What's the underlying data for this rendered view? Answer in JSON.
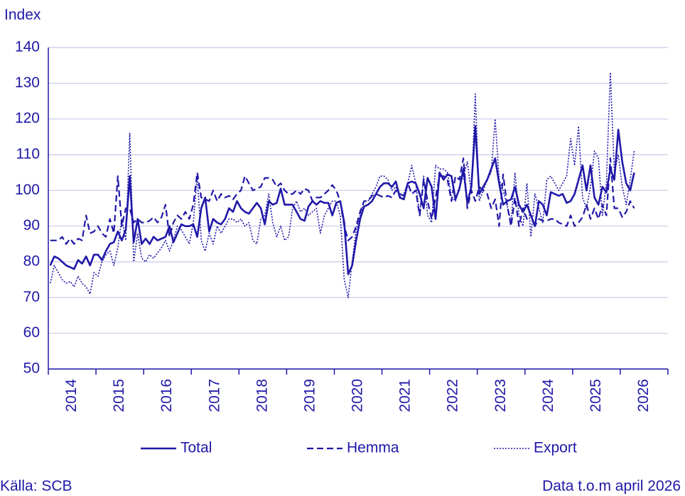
{
  "chart_data": {
    "type": "line",
    "y_label": "Index",
    "source": "Källa: SCB",
    "note": "Data t.o.m april 2026",
    "categories": [
      "2014",
      null,
      null,
      null,
      null,
      null,
      null,
      null,
      null,
      null,
      null,
      null,
      "2015",
      null,
      null,
      null,
      null,
      null,
      null,
      null,
      null,
      null,
      null,
      null,
      "2016",
      null,
      null,
      null,
      null,
      null,
      null,
      null,
      null,
      null,
      null,
      null,
      "2017",
      null,
      null,
      null,
      null,
      null,
      null,
      null,
      null,
      null,
      null,
      null,
      "2018",
      null,
      null,
      null,
      null,
      null,
      null,
      null,
      null,
      null,
      null,
      null,
      "2019",
      null,
      null,
      null,
      null,
      null,
      null,
      null,
      null,
      null,
      null,
      null,
      "2020",
      null,
      null,
      null,
      null,
      null,
      null,
      null,
      null,
      null,
      null,
      null,
      "2021",
      null,
      null,
      null,
      null,
      null,
      null,
      null,
      null,
      null,
      null,
      null,
      "2022",
      null,
      null,
      null,
      null,
      null,
      null,
      null,
      null,
      null,
      null,
      null,
      "2023",
      null,
      null,
      null,
      null,
      null,
      null,
      null,
      null,
      null,
      null,
      null,
      "2024",
      null,
      null,
      null,
      null,
      null,
      null,
      null,
      null,
      null,
      null,
      null,
      "2025",
      null,
      null,
      null,
      null,
      null,
      null,
      null,
      null,
      null,
      null,
      null,
      "2026",
      null,
      null,
      null
    ],
    "ylim": [
      50,
      140
    ],
    "yticks": [
      50,
      60,
      70,
      80,
      90,
      100,
      110,
      120,
      130,
      140
    ],
    "grid": true,
    "legend": "bottom",
    "series": [
      {
        "name": "Total",
        "color": "#2018a8",
        "dash": "solid",
        "values": [
          79,
          81.5,
          81,
          80,
          79,
          78.5,
          78,
          80.5,
          79.5,
          81.5,
          79,
          82,
          82,
          80.5,
          83,
          85,
          85.5,
          88.5,
          86,
          89,
          104,
          85.5,
          92,
          85,
          86.5,
          85,
          87,
          86,
          86.5,
          87,
          90,
          85.5,
          88,
          90.5,
          90,
          90,
          90.5,
          87,
          95,
          98,
          88.5,
          92,
          91,
          90.5,
          92,
          95,
          94,
          97,
          95,
          94,
          93.5,
          95,
          96.5,
          95,
          90.5,
          97,
          96,
          96.5,
          100.5,
          96,
          96,
          96,
          94,
          92,
          91.5,
          95.5,
          97,
          96,
          97,
          96.5,
          96.5,
          93,
          96.5,
          97,
          91,
          76.5,
          79,
          86,
          92,
          95.5,
          96,
          97,
          99,
          101,
          102,
          102,
          101,
          102.5,
          98,
          97.5,
          102,
          102.5,
          102,
          99,
          95,
          103.5,
          101,
          92,
          105,
          103,
          104.5,
          104,
          97.5,
          100.5,
          106,
          96.5,
          101,
          118,
          99,
          101,
          103,
          106,
          109,
          102,
          96,
          97,
          97.5,
          101,
          96,
          94,
          96,
          93,
          90,
          97,
          96,
          93,
          99.5,
          99,
          98.5,
          99,
          96.5,
          97,
          99,
          103,
          107,
          100,
          107,
          98,
          96,
          101,
          99.5,
          106,
          103,
          117,
          108,
          102,
          100,
          105
        ]
      },
      {
        "name": "Hemma",
        "color": "#2018a8",
        "dash": "dashed",
        "values": [
          86,
          86,
          86,
          87,
          85,
          86.5,
          85,
          86.5,
          86,
          93,
          88,
          88.5,
          90,
          88,
          87,
          92,
          88,
          104,
          90,
          95,
          95,
          91,
          92,
          91,
          91,
          91.5,
          92.5,
          91,
          92.5,
          96,
          87,
          91,
          93,
          92,
          94,
          92,
          96,
          105,
          98,
          97.5,
          97,
          100,
          97,
          99,
          98,
          98.5,
          97.5,
          99,
          100,
          104,
          102,
          100,
          100.5,
          101,
          103.5,
          103.5,
          103,
          101,
          102,
          100,
          99,
          99,
          100,
          99,
          100.5,
          100,
          97,
          98,
          98,
          99,
          100,
          101.5,
          100,
          97,
          90,
          86,
          87,
          90,
          94,
          97,
          97,
          98.5,
          99,
          98.5,
          98,
          98.5,
          98,
          100,
          99,
          98.5,
          102,
          99,
          100,
          93,
          103,
          97,
          92,
          98,
          104,
          104,
          103,
          97,
          104,
          103,
          109,
          95,
          100,
          97,
          101,
          100,
          99,
          95,
          97.5,
          90,
          104.5,
          96,
          90,
          98,
          90,
          95,
          92,
          93,
          90,
          92,
          91.5,
          91.5,
          92,
          92,
          91,
          90.5,
          90,
          93,
          90,
          91,
          92.5,
          96,
          92,
          95,
          92,
          96,
          93,
          109,
          95,
          95,
          92.5,
          94,
          97,
          95
        ]
      },
      {
        "name": "Export",
        "color": "#2018a8",
        "dash": "dotted",
        "values": [
          74,
          79,
          77,
          75,
          74,
          74.5,
          73,
          76,
          74,
          73,
          71,
          77,
          76,
          80,
          82,
          83,
          79,
          84,
          92,
          86,
          116,
          80,
          88,
          81,
          80,
          82,
          81,
          82.5,
          84,
          86,
          83,
          86,
          90,
          89,
          87,
          85,
          91,
          104,
          86,
          83,
          88,
          85,
          90,
          88,
          90,
          92,
          92,
          91,
          92,
          90,
          91,
          86,
          85,
          92,
          93,
          99,
          91,
          87,
          90,
          86,
          87,
          95,
          97,
          94,
          95,
          93,
          94,
          95,
          88,
          93,
          95,
          97,
          97,
          93,
          75,
          70,
          80,
          89,
          93,
          97,
          97,
          99,
          101,
          104,
          104,
          103,
          100,
          101,
          98,
          99,
          102,
          107,
          102,
          93,
          104,
          93,
          91,
          107,
          106,
          106,
          105,
          98,
          97,
          101,
          104,
          108,
          99,
          127,
          97,
          100,
          103,
          105,
          120,
          103,
          100,
          96,
          91,
          105,
          93,
          90,
          102,
          87,
          99,
          95,
          91,
          103,
          104,
          102,
          100,
          102,
          104,
          114.5,
          107,
          118,
          98,
          95,
          101,
          111,
          109,
          93,
          102,
          133,
          105,
          110,
          101,
          96,
          103,
          111
        ]
      }
    ]
  }
}
